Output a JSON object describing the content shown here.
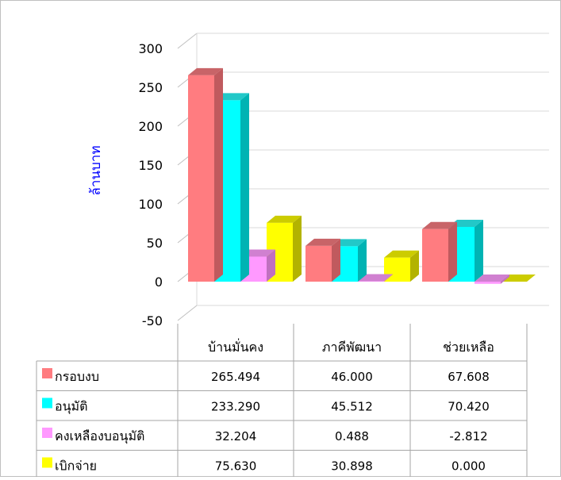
{
  "chart_data": {
    "type": "bar",
    "ylabel": "ล้านบาท",
    "ylim": [
      -50,
      300
    ],
    "yticks": [
      "300",
      "250",
      "200",
      "150",
      "100",
      "50",
      "0",
      "-50"
    ],
    "grid": true,
    "legend_placement": "data-table-left",
    "categories": [
      "บ้านมั่นคง",
      "ภาคีพัฒนา",
      "ช่วยเหลือ"
    ],
    "series": [
      {
        "name": "กรอบงบ",
        "values": [
          265.494,
          46.0,
          67.608
        ],
        "labels": [
          "265.494",
          "46.000",
          "67.608"
        ],
        "color": "#ff7c80",
        "side": "#c05a5e",
        "top": "#c86468"
      },
      {
        "name": "อนุมัติ",
        "values": [
          233.29,
          45.512,
          70.42
        ],
        "labels": [
          "233.290",
          "45.512",
          "70.420"
        ],
        "color": "#00ffff",
        "side": "#00b3b3",
        "top": "#22c8c8"
      },
      {
        "name": "คงเหลืองบอนุมัติ",
        "values": [
          32.204,
          0.488,
          -2.812
        ],
        "labels": [
          "32.204",
          "0.488",
          "-2.812"
        ],
        "color": "#ff99ff",
        "side": "#c070c0",
        "top": "#d080d0"
      },
      {
        "name": "เบิกจ่าย",
        "values": [
          75.63,
          30.898,
          0.0
        ],
        "labels": [
          "75.630",
          "30.898",
          "0.000"
        ],
        "color": "#ffff00",
        "side": "#b3b300",
        "top": "#cccc00"
      }
    ]
  }
}
